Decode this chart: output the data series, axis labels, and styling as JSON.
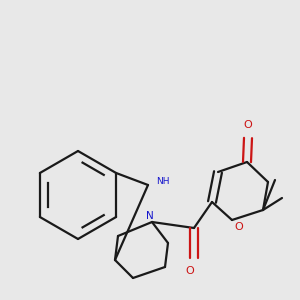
{
  "background_color": "#e8e8e8",
  "bond_color": "#1a1a1a",
  "nitrogen_color": "#1414cc",
  "oxygen_color": "#cc1414",
  "figsize": [
    3.0,
    3.0
  ],
  "dpi": 100,
  "xlim": [
    0,
    300
  ],
  "ylim": [
    0,
    300
  ]
}
